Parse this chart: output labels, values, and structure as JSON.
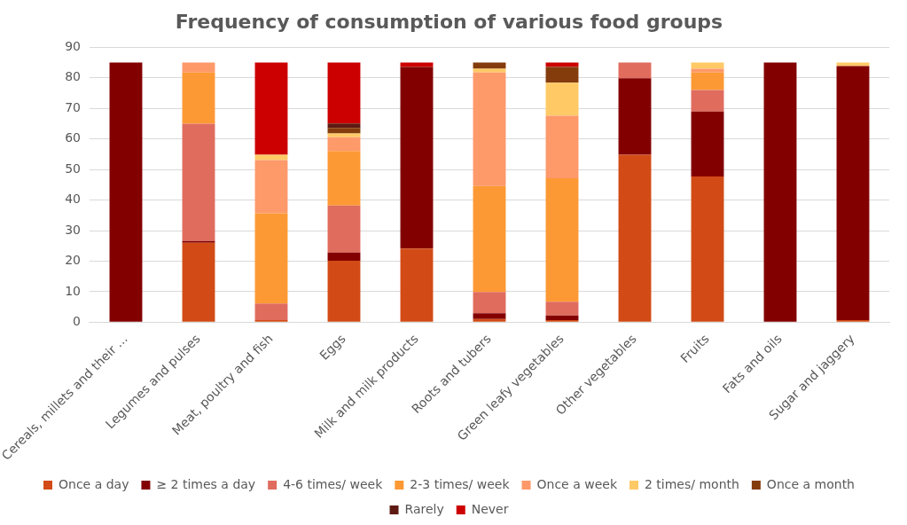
{
  "chart_data": {
    "type": "bar",
    "stacked": true,
    "title": "Frequency of consumption of various food groups",
    "categories": [
      "Cereals, millets and their ...",
      "Legumes and pulses",
      "Meat, poultry and fish",
      "Eggs",
      "Milk and milk products",
      "Roots and tubers",
      "Green leafy vegetables",
      "Other vegetables",
      "Fruits",
      "Fats and oils",
      "Sugar and jaggery"
    ],
    "series": [
      {
        "name": "Once a day",
        "color": "#d24b16",
        "values": [
          0,
          26,
          0.7,
          20.1,
          24.1,
          1,
          0.7,
          54.8,
          47.7,
          0,
          0.7
        ]
      },
      {
        "name": "≥ 2 times a day",
        "color": "#830000",
        "values": [
          85,
          0.6,
          0,
          2.7,
          59.5,
          1.9,
          1.5,
          25.1,
          21.3,
          85,
          83.2
        ]
      },
      {
        "name": "4-6 times/ week",
        "color": "#e06c5e",
        "values": [
          0,
          38.4,
          5.4,
          15.4,
          0,
          7,
          4.5,
          5.1,
          7,
          0,
          0
        ]
      },
      {
        "name": "2-3 times/ week",
        "color": "#fd9934",
        "values": [
          0,
          16.8,
          29.6,
          17.9,
          0,
          34.7,
          40.4,
          0,
          5.8,
          0,
          0
        ]
      },
      {
        "name": "Once a week",
        "color": "#fe996a",
        "values": [
          0,
          3.2,
          17.4,
          4.5,
          0,
          37.2,
          20.5,
          0,
          1.2,
          0,
          0
        ]
      },
      {
        "name": "2 times/ month",
        "color": "#ffc966",
        "values": [
          0,
          0,
          1.7,
          1.2,
          0,
          1.2,
          10.8,
          0,
          2,
          0,
          1.1
        ]
      },
      {
        "name": "Once a month",
        "color": "#843c0c",
        "values": [
          0,
          0,
          0,
          1.8,
          0,
          2,
          5.2,
          0,
          0,
          0,
          0
        ]
      },
      {
        "name": "Rarely",
        "color": "#5e1a12",
        "values": [
          0,
          0,
          0,
          1.5,
          0,
          0,
          0,
          0,
          0,
          0,
          0
        ]
      },
      {
        "name": "Never",
        "color": "#cc0000",
        "values": [
          0,
          0,
          30.2,
          19.9,
          1.4,
          0,
          1.4,
          0,
          0,
          0,
          0
        ]
      }
    ],
    "ylim": [
      0,
      90
    ],
    "yticks": [
      0,
      10,
      20,
      30,
      40,
      50,
      60,
      70,
      80,
      90
    ],
    "grid": "y",
    "legend": "bottom"
  }
}
